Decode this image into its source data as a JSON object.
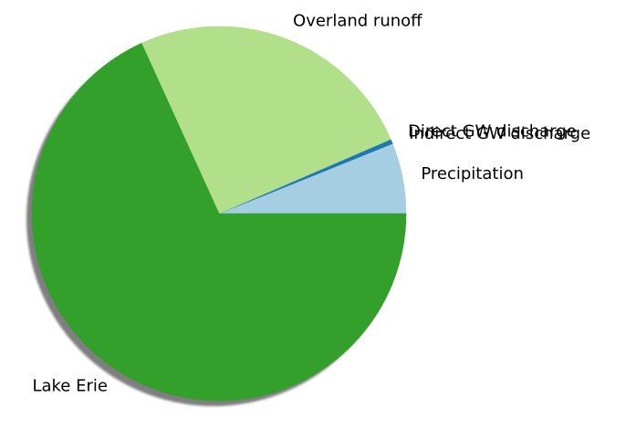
{
  "chart_data": {
    "type": "pie",
    "title": "",
    "shadow": true,
    "start_angle_deg": 0,
    "direction": "counterclockwise",
    "slices": [
      {
        "label": "Precipitation",
        "value": 6.1,
        "color": "#a6cee3"
      },
      {
        "label": "Indirect GW discharge",
        "value": 0.4,
        "color": "#1f78b4"
      },
      {
        "label": "Direct GW discharge",
        "value": 0.0,
        "color": "#1f78b4"
      },
      {
        "label": "Overland runoff",
        "value": 25.3,
        "color": "#b2df8a"
      },
      {
        "label": "Lake Erie",
        "value": 68.2,
        "color": "#33a02c"
      }
    ]
  }
}
